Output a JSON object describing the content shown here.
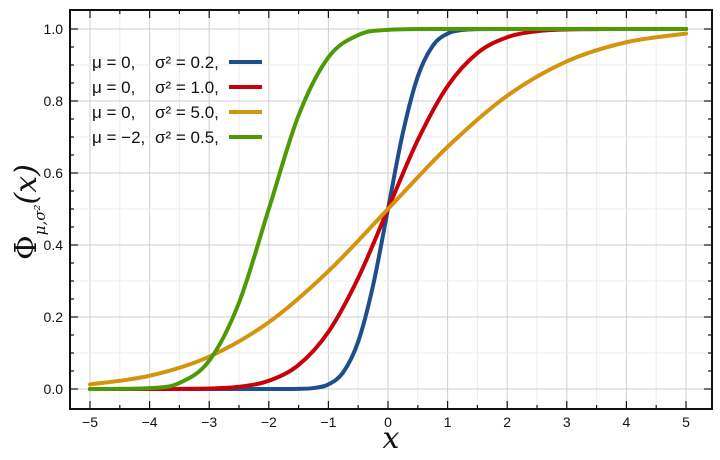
{
  "chart_data": {
    "type": "line",
    "title": "",
    "xlabel": "x",
    "ylabel": "Φμ,σ²(x)",
    "ylabel_main": "Φ",
    "ylabel_sub": "μ,σ²",
    "ylabel_arg": "(x)",
    "xlim": [
      -5.0,
      5.0
    ],
    "ylim": [
      0.0,
      1.0
    ],
    "xticks": [
      -5,
      -4,
      -3,
      -2,
      -1,
      0,
      1,
      2,
      3,
      4,
      5
    ],
    "xtick_labels": [
      "−5",
      "−4",
      "−3",
      "−2",
      "−1",
      "0",
      "1",
      "2",
      "3",
      "4",
      "5"
    ],
    "yticks": [
      0.0,
      0.2,
      0.4,
      0.6,
      0.8,
      1.0
    ],
    "ytick_labels": [
      "0.0",
      "0.2",
      "0.4",
      "0.6",
      "0.8",
      "1.0"
    ],
    "grid": true,
    "legend_position": "top-left",
    "series": [
      {
        "mu_label": "μ = 0,",
        "var_label": "σ² = 0.2,",
        "color": "#1f4e8c",
        "x": [
          -5,
          -4,
          -3,
          -2,
          -1.5,
          -1.25,
          -1,
          -0.75,
          -0.5,
          -0.25,
          0,
          0.25,
          0.5,
          0.75,
          1,
          1.25,
          1.5,
          2,
          3,
          4,
          5
        ],
        "y": [
          0.0,
          0.0,
          0.0,
          0.0,
          0.0004,
          0.0026,
          0.0127,
          0.0468,
          0.1318,
          0.2881,
          0.5,
          0.7119,
          0.8682,
          0.9532,
          0.9873,
          0.9974,
          0.9996,
          1.0,
          1.0,
          1.0,
          1.0
        ]
      },
      {
        "mu_label": "μ = 0,",
        "var_label": "σ² = 1.0,",
        "color": "#c8000a",
        "x": [
          -5,
          -4,
          -3,
          -2.5,
          -2,
          -1.5,
          -1,
          -0.5,
          0,
          0.5,
          1,
          1.5,
          2,
          2.5,
          3,
          4,
          5
        ],
        "y": [
          0.0,
          0.0,
          0.0013,
          0.0062,
          0.0228,
          0.0668,
          0.1587,
          0.3085,
          0.5,
          0.6915,
          0.8413,
          0.9332,
          0.9772,
          0.9938,
          0.9987,
          1.0,
          1.0
        ]
      },
      {
        "mu_label": "μ = 0,",
        "var_label": "σ² = 5.0,",
        "color": "#d4940f",
        "x": [
          -5,
          -4,
          -3,
          -2,
          -1,
          0,
          1,
          2,
          3,
          4,
          5
        ],
        "y": [
          0.0127,
          0.0368,
          0.0899,
          0.1855,
          0.3274,
          0.5,
          0.6726,
          0.8145,
          0.9101,
          0.9632,
          0.9873
        ]
      },
      {
        "mu_label": "μ = −2,",
        "var_label": "σ² = 0.5,",
        "color": "#4e9a06",
        "x": [
          -5,
          -4,
          -3.5,
          -3,
          -2.5,
          -2,
          -1.5,
          -1,
          -0.5,
          0,
          1,
          2,
          3,
          4,
          5
        ],
        "y": [
          0.0,
          0.0023,
          0.0169,
          0.0786,
          0.2398,
          0.5,
          0.7602,
          0.9214,
          0.9831,
          0.9977,
          1.0,
          1.0,
          1.0,
          1.0,
          1.0
        ]
      }
    ]
  }
}
